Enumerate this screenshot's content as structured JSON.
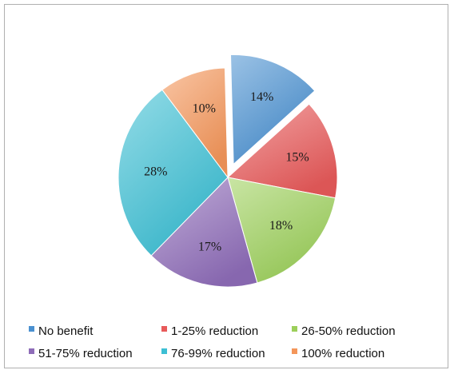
{
  "chart_data": {
    "type": "pie",
    "title": "",
    "exploded": [
      "No benefit"
    ],
    "legend_position": "bottom",
    "slices": [
      {
        "label": "No benefit",
        "value": 14,
        "display": "14%",
        "color": "#4a90d0"
      },
      {
        "label": "1-25% reduction",
        "value": 15,
        "display": "15%",
        "color": "#e85a5a"
      },
      {
        "label": "26-50% reduction",
        "value": 18,
        "display": "18%",
        "color": "#9ccf5a"
      },
      {
        "label": "51-75% reduction",
        "value": 17,
        "display": "17%",
        "color": "#8e6cb8"
      },
      {
        "label": "76-99% reduction",
        "value": 28,
        "display": "28%",
        "color": "#3cbfd4"
      },
      {
        "label": "100% reduction",
        "value": 10,
        "display": "10%",
        "color": "#f4965a"
      }
    ]
  }
}
